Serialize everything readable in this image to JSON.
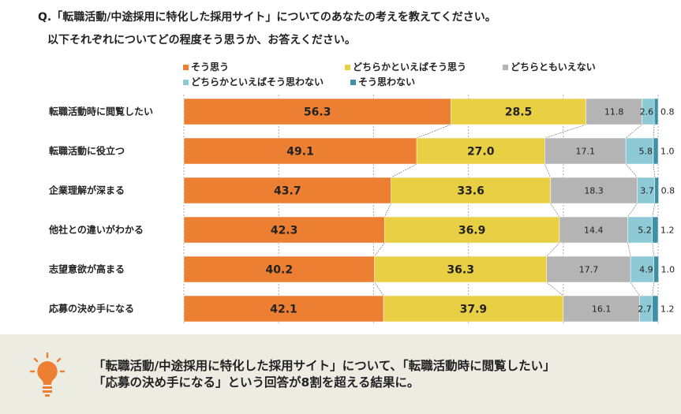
{
  "question": {
    "line1": "Q.「転職活動/中途採用に特化した採用サイト」についてのあなたの考えを教えてください。",
    "line2": "以下それぞれについてどの程度そう思うか、お答えください。"
  },
  "chart_data": {
    "type": "bar",
    "orientation": "horizontal",
    "stacked": true,
    "xlim": [
      0,
      100
    ],
    "grid": true,
    "legend_position": "top",
    "categories": [
      "転職活動時に閲覧したい",
      "転職活動に役立つ",
      "企業理解が深まる",
      "他社との違いがわかる",
      "志望意欲が高まる",
      "応募の決め手になる"
    ],
    "series": [
      {
        "name": "そう思う",
        "color": "#ec7f32",
        "values": [
          56.3,
          49.1,
          43.7,
          42.3,
          40.2,
          42.1
        ]
      },
      {
        "name": "どちらかといえばそう思う",
        "color": "#e8cf44",
        "values": [
          28.5,
          27.0,
          33.6,
          36.9,
          36.3,
          37.9
        ]
      },
      {
        "name": "どちらともいえない",
        "color": "#b4b4b4",
        "values": [
          11.8,
          17.1,
          18.3,
          14.4,
          17.7,
          16.1
        ]
      },
      {
        "name": "どちらかといえばそう思わない",
        "color": "#8ec9d6",
        "values": [
          2.6,
          5.8,
          3.7,
          5.2,
          4.9,
          2.7
        ]
      },
      {
        "name": "そう思わない",
        "color": "#3e8fa8",
        "values": [
          0.8,
          1.0,
          0.8,
          1.2,
          1.0,
          1.2
        ]
      }
    ]
  },
  "footer": {
    "line1": "「転職活動/中途採用に特化した採用サイト」について、「転職活動時に閲覧したい」",
    "line2": "「応募の決め手になる」という回答が8割を超える結果に。",
    "icon": "lightbulb-icon",
    "icon_color": "#ec7f32"
  }
}
